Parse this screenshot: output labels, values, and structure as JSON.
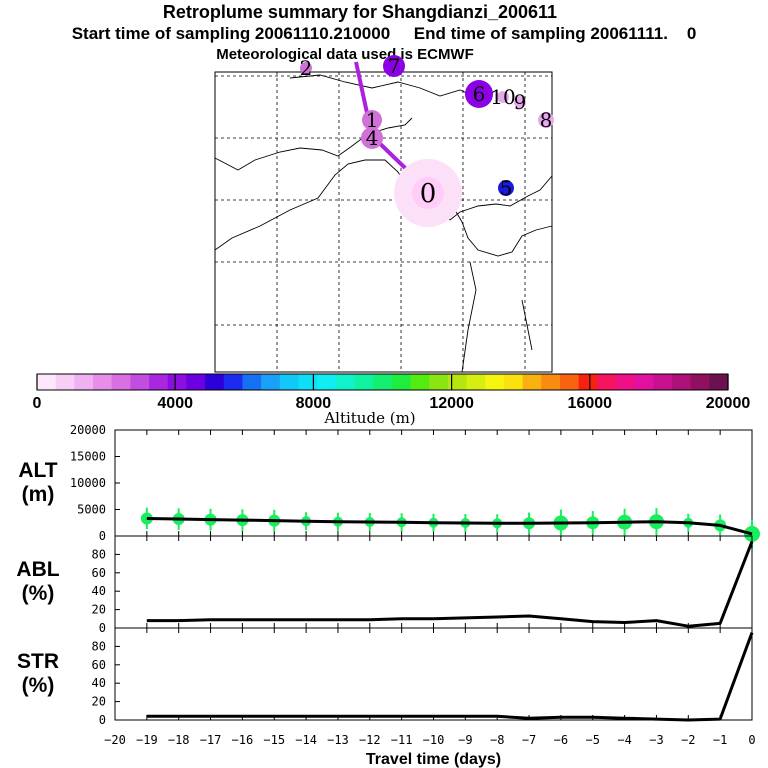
{
  "header": {
    "title": "Retroplume summary for Shangdianzi_200611",
    "subtitle_start": "Start time of sampling 20061110.210000",
    "subtitle_end": "End time of sampling 20061111.    0",
    "met": "Meteorological data used is ECMWF"
  },
  "map": {
    "track_color": "#aa22dd",
    "clusters": [
      {
        "label": "0",
        "color": "#ffcdf7",
        "halo": "#fbe0f8",
        "big": true
      },
      {
        "label": "1",
        "color": "#d070d8"
      },
      {
        "label": "4",
        "color": "#d070d8"
      },
      {
        "label": "5",
        "color": "#1a1adc"
      },
      {
        "label": "6",
        "color": "#8c00e6"
      },
      {
        "label": "7",
        "color": "#8c00e6"
      },
      {
        "label": "8",
        "color": "#e8a8ee"
      },
      {
        "label": "9",
        "color": "#e8a8ee"
      },
      {
        "label": "10",
        "color": "#e8a8ee"
      },
      {
        "label": "2",
        "color": "#d070d8"
      }
    ]
  },
  "colorbar": {
    "tick_labels": [
      "0",
      "4000",
      "8000",
      "12000",
      "16000",
      "20000"
    ],
    "ticks": [
      0,
      4000,
      8000,
      12000,
      16000,
      20000
    ],
    "xlabel": "Altitude (m)",
    "colors": [
      "#fde8fb",
      "#f8cdf6",
      "#efb1f2",
      "#e68ee8",
      "#d86fe3",
      "#c24de0",
      "#a827df",
      "#8b10e0",
      "#6c00e0",
      "#2c00d8",
      "#1b2cf0",
      "#1670f4",
      "#1aa0f7",
      "#12c8f6",
      "#0be0f8",
      "#10eef2",
      "#10f2cc",
      "#10f1a2",
      "#13ef70",
      "#20ec3d",
      "#52ec10",
      "#8ae610",
      "#b7e510",
      "#d7ef10",
      "#f5f510",
      "#fde010",
      "#f8b210",
      "#f88c10",
      "#f76410",
      "#f82010",
      "#f61360",
      "#ef1088",
      "#e010a0",
      "#c81090",
      "#ad1078",
      "#901060",
      "#6c1050"
    ]
  },
  "chart_data": [
    {
      "type": "line",
      "name": "altitude",
      "ylabel": "ALT\n(m)",
      "x": [
        -19,
        -18,
        -17,
        -16,
        -15,
        -14,
        -13,
        -12,
        -11,
        -10,
        -9,
        -8,
        -7,
        -6,
        -5,
        -4,
        -3,
        -2,
        -1,
        0
      ],
      "values": [
        3300,
        3200,
        3100,
        3000,
        2900,
        2800,
        2700,
        2650,
        2600,
        2500,
        2450,
        2400,
        2400,
        2450,
        2500,
        2600,
        2700,
        2500,
        2000,
        400
      ],
      "marker_sizes": [
        1.2,
        1.2,
        1.2,
        1.2,
        1.2,
        1.0,
        1.0,
        1.0,
        1.0,
        1.0,
        1.0,
        1.0,
        1.2,
        1.5,
        1.3,
        1.5,
        1.5,
        1.0,
        1.2,
        1.6
      ],
      "marker_color": "#19ee5e",
      "ylim": [
        0,
        20000
      ],
      "ytick_labels": [
        "0",
        "5000",
        "10000",
        "15000",
        "20000"
      ],
      "yticks": [
        0,
        5000,
        10000,
        15000,
        20000
      ]
    },
    {
      "type": "line",
      "name": "abl",
      "ylabel": "ABL\n(%)",
      "x": [
        -19,
        -18,
        -17,
        -16,
        -15,
        -14,
        -13,
        -12,
        -11,
        -10,
        -9,
        -8,
        -7,
        -6,
        -5,
        -4,
        -3,
        -2,
        -1,
        0
      ],
      "values": [
        8,
        8,
        9,
        9,
        9,
        9,
        9,
        9,
        10,
        10,
        11,
        12,
        13,
        10,
        7,
        6,
        8,
        2,
        5,
        94
      ],
      "ylim": [
        0,
        100
      ],
      "ytick_labels": [
        "0",
        "20",
        "40",
        "60",
        "80"
      ],
      "yticks": [
        0,
        20,
        40,
        60,
        80
      ]
    },
    {
      "type": "line",
      "name": "str",
      "ylabel": "STR\n(%)",
      "x": [
        -19,
        -18,
        -17,
        -16,
        -15,
        -14,
        -13,
        -12,
        -11,
        -10,
        -9,
        -8,
        -7,
        -6,
        -5,
        -4,
        -3,
        -2,
        -1,
        0
      ],
      "values": [
        4,
        4,
        4,
        4,
        4,
        4,
        4,
        4,
        4,
        4,
        4,
        4,
        2,
        3,
        3,
        2,
        1,
        0,
        1,
        95
      ],
      "ylim": [
        0,
        100
      ],
      "ytick_labels": [
        "0",
        "20",
        "40",
        "60",
        "80"
      ],
      "yticks": [
        0,
        20,
        40,
        60,
        80
      ]
    }
  ],
  "xaxis": {
    "xlabel": "Travel time (days)",
    "ticks": [
      -20,
      -19,
      -18,
      -17,
      -16,
      -15,
      -14,
      -13,
      -12,
      -11,
      -10,
      -9,
      -8,
      -7,
      -6,
      -5,
      -4,
      -3,
      -2,
      -1,
      0
    ],
    "tick_labels": [
      "−20",
      "−19",
      "−18",
      "−17",
      "−16",
      "−15",
      "−14",
      "−13",
      "−12",
      "−11",
      "−10",
      "−9",
      "−8",
      "−7",
      "−6",
      "−5",
      "−4",
      "−3",
      "−2",
      "−1",
      "0"
    ]
  }
}
